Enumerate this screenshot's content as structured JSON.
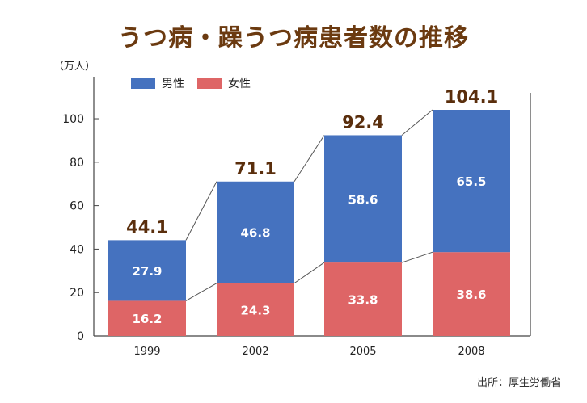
{
  "title": "うつ病・躁うつ病患者数の推移",
  "source": "出所：厚生労働省",
  "colors": {
    "male": "#4572bf",
    "female": "#de6566",
    "axis": "#444444",
    "connector": "#555555"
  },
  "chart_data": {
    "type": "bar",
    "stacked": true,
    "title": "うつ病・躁うつ病患者数の推移",
    "ylabel": "（万人）",
    "xlabel": "",
    "categories": [
      "1999",
      "2002",
      "2005",
      "2008"
    ],
    "series": [
      {
        "name": "女性",
        "values": [
          16.2,
          24.3,
          33.8,
          38.6
        ]
      },
      {
        "name": "男性",
        "values": [
          27.9,
          46.8,
          58.6,
          65.5
        ]
      }
    ],
    "totals": [
      "44.1",
      "71.1",
      "92.4",
      "104.1"
    ],
    "yticks": [
      0,
      20,
      40,
      60,
      80,
      100
    ],
    "ylim": [
      0,
      104.1
    ],
    "legend": [
      "男性",
      "女性"
    ],
    "legend_position": "top-left",
    "grid": false
  }
}
